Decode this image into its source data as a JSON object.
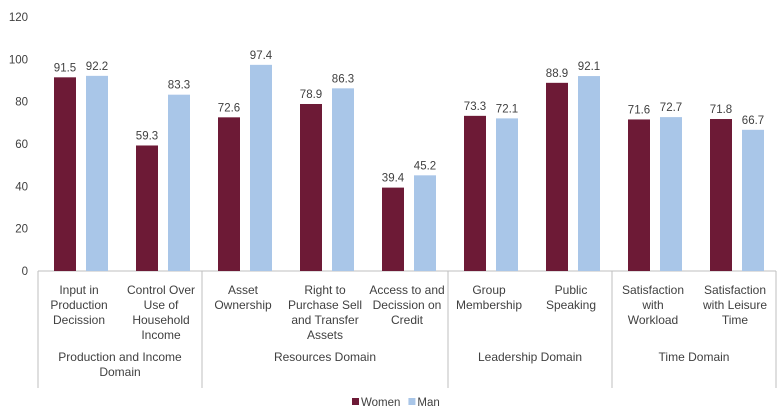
{
  "chart_data": {
    "type": "bar",
    "groups": [
      {
        "name": "Production and Income\nDomain",
        "categories": [
          "Input in\nProduction\nDecission",
          "Control Over\nUse of\nHousehold\nIncome"
        ]
      },
      {
        "name": "Resources Domain",
        "categories": [
          "Asset\nOwnership",
          "Right to\nPurchase Sell\nand Transfer\nAssets",
          "Access to and\nDecission on\nCredit"
        ]
      },
      {
        "name": "Leadership Domain",
        "categories": [
          "Group\nMembership",
          "Public\nSpeaking"
        ]
      },
      {
        "name": "Time Domain",
        "categories": [
          "Satisfaction\nwith\nWorkload",
          "Satisfaction\nwith Leisure\nTime"
        ]
      }
    ],
    "series": [
      {
        "name": "Women",
        "color": "#6d1a36",
        "values": [
          91.5,
          59.3,
          72.6,
          78.9,
          39.4,
          73.3,
          88.9,
          71.6,
          71.8
        ]
      },
      {
        "name": "Man",
        "color": "#a9c6e8",
        "values": [
          92.2,
          83.3,
          97.4,
          86.3,
          45.2,
          72.1,
          92.1,
          72.7,
          66.7
        ]
      }
    ],
    "ylim": [
      0,
      120
    ],
    "yticks": [
      0,
      20,
      40,
      60,
      80,
      100,
      120
    ],
    "legend": "bottom"
  }
}
